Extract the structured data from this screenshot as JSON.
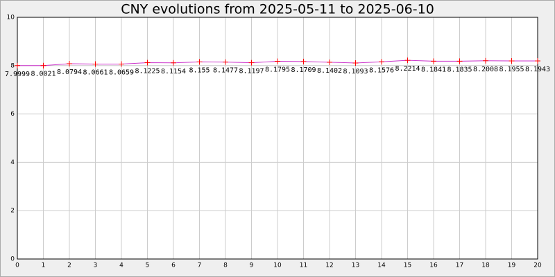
{
  "chart_data": {
    "type": "line",
    "title": "CNY evolutions from 2025-05-11 to 2025-06-10",
    "x": [
      0,
      1,
      2,
      3,
      4,
      5,
      6,
      7,
      8,
      9,
      10,
      11,
      12,
      13,
      14,
      15,
      16,
      17,
      18,
      19,
      20
    ],
    "series": [
      {
        "color": "#cc33cc",
        "marker_color": "#ff0000",
        "values": [
          7.9999,
          8.0021,
          8.0794,
          8.0661,
          8.0659,
          8.1225,
          8.1154,
          8.155,
          8.1477,
          8.1197,
          8.1795,
          8.1709,
          8.1402,
          8.1093,
          8.1576,
          8.2214,
          8.1841,
          8.1835,
          8.2008,
          8.1955,
          8.1943
        ]
      }
    ],
    "xlim": [
      0,
      20
    ],
    "xticks": [
      0,
      1,
      2,
      3,
      4,
      5,
      6,
      7,
      8,
      9,
      10,
      11,
      12,
      13,
      14,
      15,
      16,
      17,
      18,
      19,
      20
    ],
    "ylim": [
      0,
      10
    ],
    "yticks": [
      0,
      2,
      4,
      6,
      8,
      10
    ],
    "grid": true
  }
}
